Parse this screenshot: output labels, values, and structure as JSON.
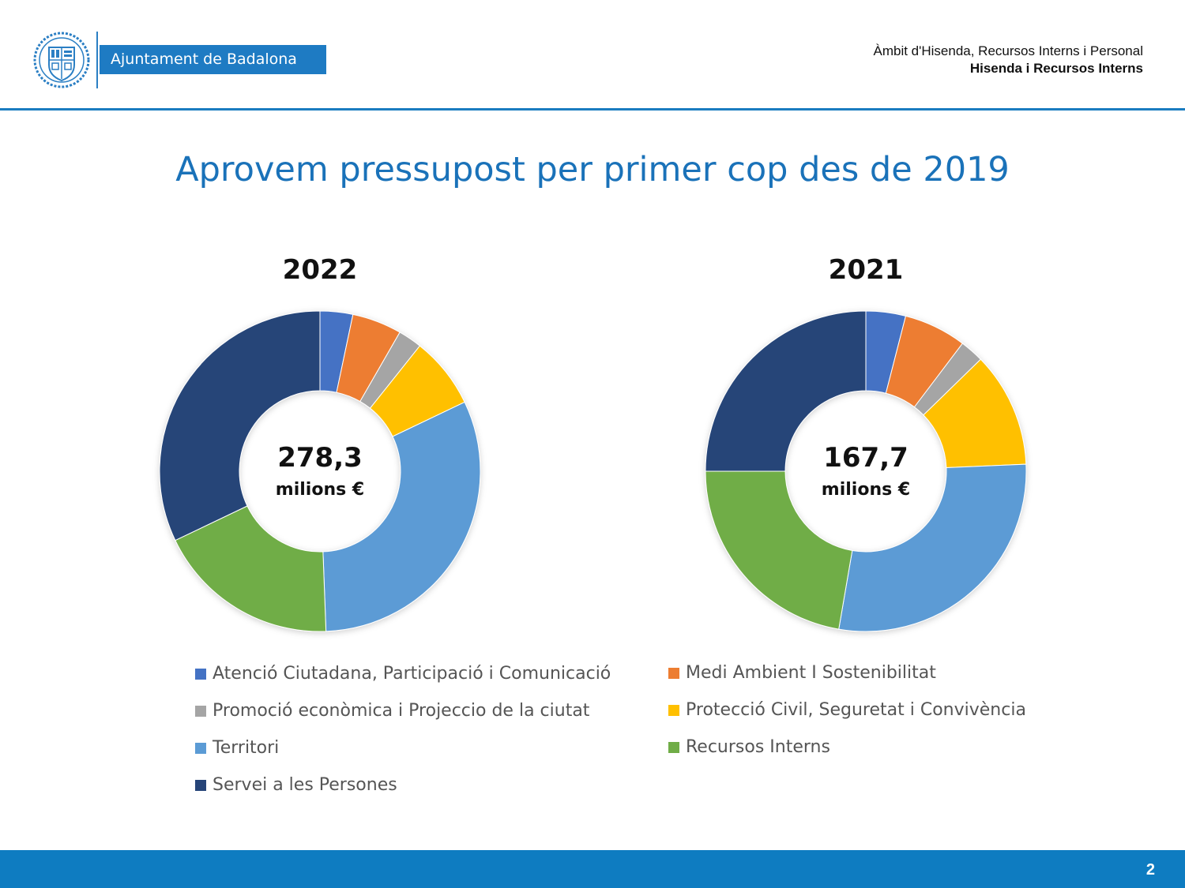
{
  "header": {
    "org_name": "Ajuntament de Badalona",
    "dept_line1": "Àmbit d'Hisenda, Recursos Interns i Personal",
    "dept_line2": "Hisenda i Recursos Interns"
  },
  "title": "Aprovem pressupost per primer cop des de 2019",
  "footer": {
    "page_number": "2"
  },
  "chart_data": [
    {
      "type": "pie",
      "donut": true,
      "title": "2022",
      "center_value": "278,3",
      "center_unit": "milions €",
      "categories": [
        "Atenció Ciutadana, Participació i Comunicació",
        "Medi Ambient I Sostenibilitat",
        "Promoció econòmica i Projeccio de la ciutat",
        "Protecció Civil, Seguretat i Convivència",
        "Territori",
        "Recursos Interns",
        "Servei a les Persones"
      ],
      "values": [
        3.3,
        5.0,
        2.4,
        7.2,
        31.5,
        18.5,
        32.1
      ],
      "colors": [
        "#4472C4",
        "#ED7D31",
        "#A5A5A5",
        "#FFC000",
        "#5B9BD5",
        "#70AD47",
        "#264478"
      ]
    },
    {
      "type": "pie",
      "donut": true,
      "title": "2021",
      "center_value": "167,7",
      "center_unit": "milions €",
      "categories": [
        "Atenció Ciutadana, Participació i Comunicació",
        "Medi Ambient I Sostenibilitat",
        "Promoció econòmica i Projeccio de la ciutat",
        "Protecció Civil, Seguretat i Convivència",
        "Territori",
        "Recursos Interns",
        "Servei a les Persones"
      ],
      "values": [
        4.0,
        6.3,
        2.4,
        11.6,
        28.4,
        22.3,
        25.0
      ],
      "colors": [
        "#4472C4",
        "#ED7D31",
        "#A5A5A5",
        "#FFC000",
        "#5B9BD5",
        "#70AD47",
        "#264478"
      ]
    }
  ],
  "legend": [
    {
      "label": "Atenció Ciutadana, Participació i Comunicació",
      "color": "#4472C4"
    },
    {
      "label": "Medi Ambient I Sostenibilitat",
      "color": "#ED7D31"
    },
    {
      "label": "Promoció econòmica i Projeccio de la ciutat",
      "color": "#A5A5A5"
    },
    {
      "label": "Protecció Civil, Seguretat i Convivència",
      "color": "#FFC000"
    },
    {
      "label": "Territori",
      "color": "#5B9BD5"
    },
    {
      "label": "Recursos Interns",
      "color": "#70AD47"
    },
    {
      "label": "Servei a les Persones",
      "color": "#264478"
    }
  ]
}
